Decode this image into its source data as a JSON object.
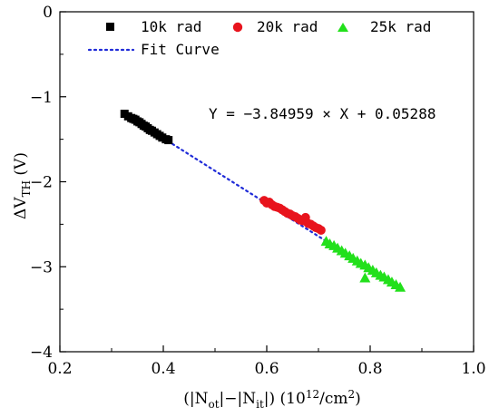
{
  "chart_data": {
    "type": "scatter",
    "xlabel": "(|N_ot|−|N_it|)  (10^12/cm^2)",
    "ylabel": "ΔV_TH (V)",
    "xlim": [
      0.2,
      1.0
    ],
    "ylim": [
      -4,
      0
    ],
    "xticks": [
      "0.2",
      "0.4",
      "0.6",
      "0.8",
      "1.0"
    ],
    "yticks": [
      "0",
      "−1",
      "−2",
      "−3",
      "−4"
    ],
    "legend_position": "top",
    "grid": false,
    "series": [
      {
        "name": "10k rad",
        "marker": "square",
        "color": "#000000",
        "points": [
          [
            0.325,
            -1.2
          ],
          [
            0.332,
            -1.23
          ],
          [
            0.338,
            -1.25
          ],
          [
            0.342,
            -1.26
          ],
          [
            0.346,
            -1.27
          ],
          [
            0.35,
            -1.29
          ],
          [
            0.354,
            -1.3
          ],
          [
            0.358,
            -1.32
          ],
          [
            0.362,
            -1.34
          ],
          [
            0.366,
            -1.35
          ],
          [
            0.37,
            -1.37
          ],
          [
            0.374,
            -1.39
          ],
          [
            0.378,
            -1.4
          ],
          [
            0.383,
            -1.42
          ],
          [
            0.388,
            -1.44
          ],
          [
            0.393,
            -1.46
          ],
          [
            0.398,
            -1.48
          ],
          [
            0.405,
            -1.5
          ],
          [
            0.41,
            -1.51
          ]
        ]
      },
      {
        "name": "20k rad",
        "marker": "circle",
        "color": "#e8141d",
        "points": [
          [
            0.595,
            -2.22
          ],
          [
            0.6,
            -2.25
          ],
          [
            0.605,
            -2.24
          ],
          [
            0.61,
            -2.27
          ],
          [
            0.615,
            -2.29
          ],
          [
            0.62,
            -2.3
          ],
          [
            0.625,
            -2.31
          ],
          [
            0.63,
            -2.33
          ],
          [
            0.635,
            -2.35
          ],
          [
            0.64,
            -2.37
          ],
          [
            0.645,
            -2.38
          ],
          [
            0.65,
            -2.4
          ],
          [
            0.655,
            -2.41
          ],
          [
            0.66,
            -2.43
          ],
          [
            0.665,
            -2.45
          ],
          [
            0.67,
            -2.46
          ],
          [
            0.675,
            -2.42
          ],
          [
            0.68,
            -2.49
          ],
          [
            0.685,
            -2.5
          ],
          [
            0.69,
            -2.52
          ],
          [
            0.695,
            -2.54
          ],
          [
            0.7,
            -2.55
          ],
          [
            0.705,
            -2.57
          ]
        ]
      },
      {
        "name": "25k rad",
        "marker": "triangle",
        "color": "#22e01b",
        "points": [
          [
            0.715,
            -2.7
          ],
          [
            0.722,
            -2.73
          ],
          [
            0.73,
            -2.75
          ],
          [
            0.737,
            -2.78
          ],
          [
            0.745,
            -2.81
          ],
          [
            0.752,
            -2.84
          ],
          [
            0.76,
            -2.87
          ],
          [
            0.767,
            -2.9
          ],
          [
            0.775,
            -2.93
          ],
          [
            0.782,
            -2.96
          ],
          [
            0.79,
            -2.98
          ],
          [
            0.797,
            -3.01
          ],
          [
            0.805,
            -3.04
          ],
          [
            0.812,
            -3.07
          ],
          [
            0.82,
            -3.1
          ],
          [
            0.827,
            -3.12
          ],
          [
            0.835,
            -3.15
          ],
          [
            0.842,
            -3.18
          ],
          [
            0.85,
            -3.21
          ],
          [
            0.858,
            -3.24
          ],
          [
            0.79,
            -3.13
          ]
        ]
      }
    ],
    "fit": {
      "name": "Fit Curve",
      "style": "dotted",
      "color": "#1f2bd8",
      "slope": -3.84959,
      "intercept": 0.05288,
      "x_range": [
        0.32,
        0.86
      ],
      "equation": "Y = −3.84959 × X + 0.05288"
    }
  }
}
